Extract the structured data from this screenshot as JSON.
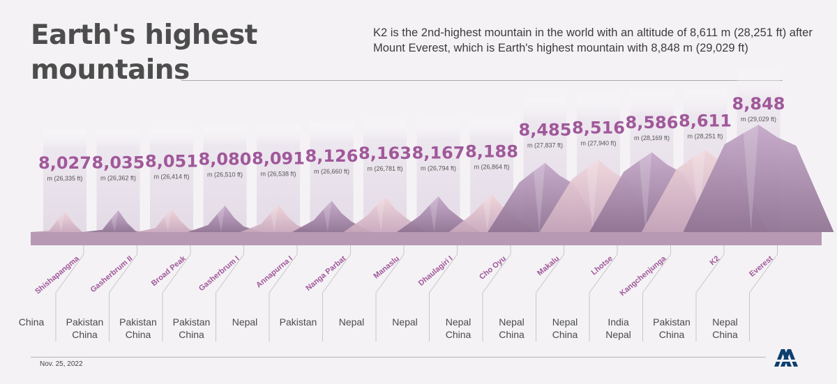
{
  "title_lines": [
    "Earth's highest",
    "mountains"
  ],
  "subtitle": "K2 is the 2nd-highest mountain in the world with an altitude of 8,611 m (28,251 ft) after Mount Everest, which is Earth's highest mountain with 8,848 m (29,029 ft)",
  "date": "Nov. 25, 2022",
  "colors": {
    "accent": "#a0589a",
    "base_bar": "#b899b3",
    "title": "#4d4d4d"
  },
  "chart_data": {
    "type": "bar",
    "title": "Earth's highest mountains",
    "categories": [
      "Shishapangma",
      "Gasherbrum II",
      "Broad Peak",
      "Gasherbrum I",
      "Annapurna I",
      "Nanga Parbat",
      "Manaslu",
      "Dhaulagiri I",
      "Cho Oyu",
      "Makalu",
      "Lhotse",
      "Kangchenjunga",
      "K2",
      "Everest"
    ],
    "series": [
      {
        "values": [
          8027,
          8035,
          8051,
          8080,
          8091,
          8126,
          8163,
          8167,
          8188,
          8485,
          8516,
          8586,
          8611,
          8848
        ]
      }
    ],
    "value_labels": [
      "8,027",
      "8,035",
      "8,051",
      "8,080",
      "8,091",
      "8,126",
      "8,163",
      "8,167",
      "8,188",
      "8,485",
      "8,516",
      "8,586",
      "8,611",
      "8,848"
    ],
    "feet_labels": [
      "m (26,335 ft)",
      "m (26,362 ft)",
      "m (26,414 ft)",
      "m (26,510 ft)",
      "m (26,538 ft)",
      "m (26,660 ft)",
      "m (26,781 ft)",
      "m (26,794 ft)",
      "m (26,864 ft)",
      "m (27,837 ft)",
      "m (27,940 ft)",
      "m (28,169 ft)",
      "m (28,251 ft)",
      "m (29,029 ft)"
    ],
    "countries": [
      [
        "China"
      ],
      [
        "Pakistan",
        "China"
      ],
      [
        "Pakistan",
        "China"
      ],
      [
        "Pakistan",
        "China"
      ],
      [
        "Nepal"
      ],
      [
        "Pakistan"
      ],
      [
        "Nepal"
      ],
      [
        "Nepal"
      ],
      [
        "Nepal",
        "China"
      ],
      [
        "Nepal",
        "China"
      ],
      [
        "Nepal",
        "China"
      ],
      [
        "India",
        "Nepal"
      ],
      [
        "Pakistan",
        "China"
      ],
      [
        "Nepal",
        "China"
      ]
    ],
    "ylim": [
      7000,
      9000
    ],
    "grid": false,
    "legend": "none"
  }
}
